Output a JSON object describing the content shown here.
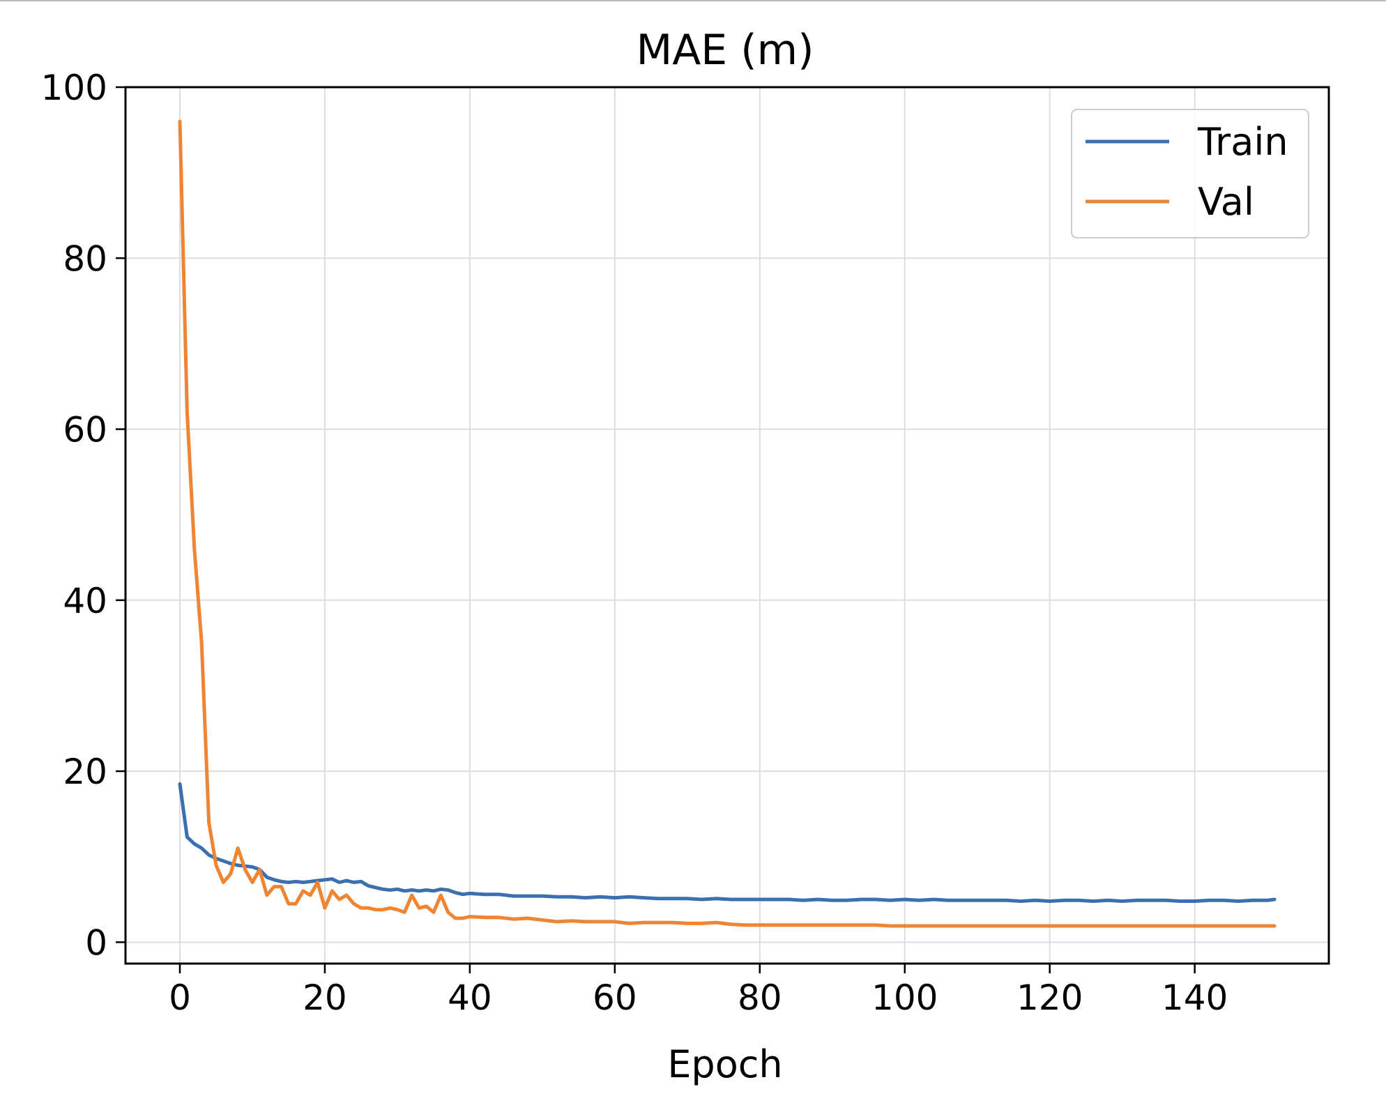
{
  "chart_data": {
    "type": "line",
    "title": "MAE (m)",
    "xlabel": "Epoch",
    "ylabel": "",
    "xlim": [
      -7.5,
      158.5
    ],
    "ylim": [
      -2.5,
      100
    ],
    "xticks": [
      0,
      20,
      40,
      60,
      80,
      100,
      120,
      140
    ],
    "yticks": [
      0,
      20,
      40,
      60,
      80,
      100
    ],
    "grid": true,
    "legend": "top-right",
    "series": [
      {
        "name": "Train",
        "color": "#3a6fb0",
        "x": [
          0,
          1,
          2,
          3,
          4,
          5,
          6,
          7,
          8,
          9,
          10,
          11,
          12,
          13,
          14,
          15,
          16,
          17,
          18,
          19,
          20,
          21,
          22,
          23,
          24,
          25,
          26,
          27,
          28,
          29,
          30,
          31,
          32,
          33,
          34,
          35,
          36,
          37,
          38,
          39,
          40,
          42,
          44,
          46,
          48,
          50,
          52,
          54,
          56,
          58,
          60,
          62,
          64,
          66,
          68,
          70,
          72,
          74,
          76,
          78,
          80,
          82,
          84,
          86,
          88,
          90,
          92,
          94,
          96,
          98,
          100,
          102,
          104,
          106,
          108,
          110,
          112,
          114,
          116,
          118,
          120,
          122,
          124,
          126,
          128,
          130,
          132,
          134,
          136,
          138,
          140,
          142,
          144,
          146,
          148,
          150,
          151
        ],
        "y": [
          18.5,
          12.3,
          11.5,
          11.0,
          10.2,
          9.8,
          9.5,
          9.2,
          9.0,
          8.9,
          8.8,
          8.5,
          7.6,
          7.3,
          7.1,
          7.0,
          7.1,
          7.0,
          7.1,
          7.2,
          7.3,
          7.4,
          7.0,
          7.2,
          7.0,
          7.1,
          6.6,
          6.4,
          6.2,
          6.1,
          6.2,
          6.0,
          6.1,
          6.0,
          6.1,
          6.0,
          6.2,
          6.1,
          5.8,
          5.6,
          5.7,
          5.6,
          5.6,
          5.4,
          5.4,
          5.4,
          5.3,
          5.3,
          5.2,
          5.3,
          5.2,
          5.3,
          5.2,
          5.1,
          5.1,
          5.1,
          5.0,
          5.1,
          5.0,
          5.0,
          5.0,
          5.0,
          5.0,
          4.9,
          5.0,
          4.9,
          4.9,
          5.0,
          5.0,
          4.9,
          5.0,
          4.9,
          5.0,
          4.9,
          4.9,
          4.9,
          4.9,
          4.9,
          4.8,
          4.9,
          4.8,
          4.9,
          4.9,
          4.8,
          4.9,
          4.8,
          4.9,
          4.9,
          4.9,
          4.8,
          4.8,
          4.9,
          4.9,
          4.8,
          4.9,
          4.9,
          5.0
        ]
      },
      {
        "name": "Val",
        "color": "#ef8533",
        "x": [
          0,
          1,
          2,
          3,
          4,
          5,
          6,
          7,
          8,
          9,
          10,
          11,
          12,
          13,
          14,
          15,
          16,
          17,
          18,
          19,
          20,
          21,
          22,
          23,
          24,
          25,
          26,
          27,
          28,
          29,
          30,
          31,
          32,
          33,
          34,
          35,
          36,
          37,
          38,
          39,
          40,
          42,
          44,
          46,
          48,
          50,
          52,
          54,
          56,
          58,
          60,
          62,
          64,
          66,
          68,
          70,
          72,
          74,
          76,
          78,
          80,
          82,
          84,
          86,
          88,
          90,
          92,
          94,
          96,
          98,
          100,
          102,
          104,
          106,
          108,
          110,
          112,
          114,
          116,
          118,
          120,
          122,
          124,
          126,
          128,
          130,
          132,
          134,
          136,
          138,
          140,
          142,
          144,
          146,
          148,
          150,
          151
        ],
        "y": [
          96,
          62,
          46,
          35,
          14,
          9,
          7,
          8,
          11,
          8.5,
          7,
          8.5,
          5.5,
          6.5,
          6.5,
          4.5,
          4.5,
          6,
          5.5,
          7,
          4,
          6,
          5,
          5.5,
          4.5,
          4,
          4,
          3.8,
          3.8,
          4,
          3.8,
          3.5,
          5.5,
          4,
          4.2,
          3.5,
          5.5,
          3.5,
          2.8,
          2.8,
          3,
          2.9,
          2.9,
          2.7,
          2.8,
          2.6,
          2.4,
          2.5,
          2.4,
          2.4,
          2.4,
          2.2,
          2.3,
          2.3,
          2.3,
          2.2,
          2.2,
          2.3,
          2.1,
          2.0,
          2.0,
          2.0,
          2.0,
          2.0,
          2.0,
          2.0,
          2.0,
          2.0,
          2.0,
          1.9,
          1.9,
          1.9,
          1.9,
          1.9,
          1.9,
          1.9,
          1.9,
          1.9,
          1.9,
          1.9,
          1.9,
          1.9,
          1.9,
          1.9,
          1.9,
          1.9,
          1.9,
          1.9,
          1.9,
          1.9,
          1.9,
          1.9,
          1.9,
          1.9,
          1.9,
          1.9,
          1.9
        ]
      }
    ]
  }
}
